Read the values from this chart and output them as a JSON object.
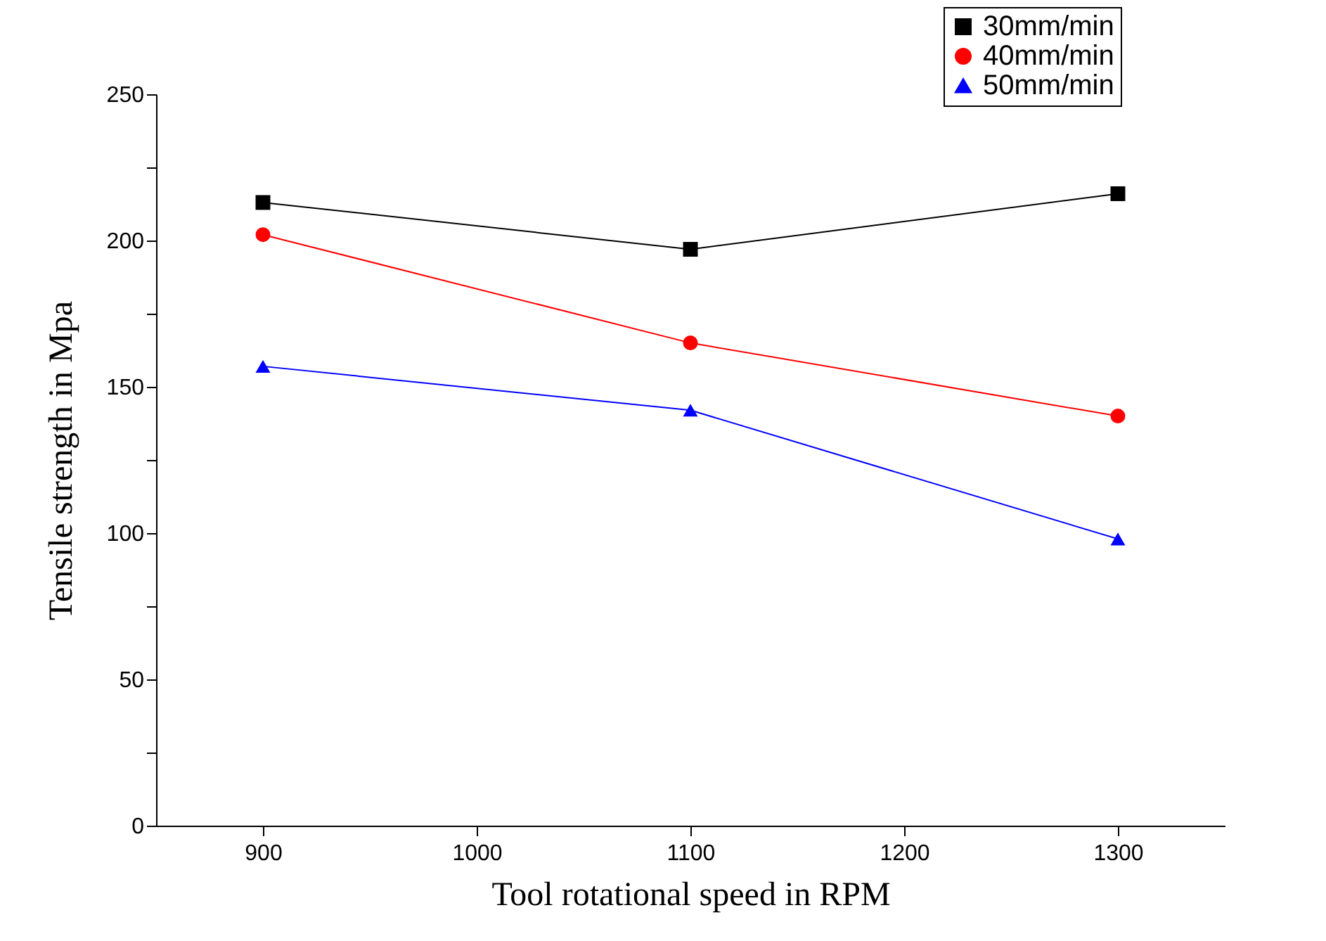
{
  "chart_data": {
    "type": "line",
    "xlabel": "Tool rotational speed in RPM",
    "ylabel": "Tensile strength in Mpa",
    "x": [
      900,
      1100,
      1300
    ],
    "series": [
      {
        "name": "30mm/min",
        "color": "#000000",
        "marker": "square",
        "values": [
          213,
          197,
          216
        ]
      },
      {
        "name": "40mm/min",
        "color": "#ff0000",
        "marker": "circle",
        "values": [
          202,
          165,
          140
        ]
      },
      {
        "name": "50mm/min",
        "color": "#0000ff",
        "marker": "triangle",
        "values": [
          157,
          142,
          98
        ]
      }
    ],
    "xlim": [
      850,
      1350
    ],
    "xticks": [
      900,
      1000,
      1100,
      1200,
      1300
    ],
    "ylim": [
      0,
      250
    ],
    "yticks": [
      0,
      {
        "value": 25,
        "label": null
      },
      50,
      {
        "value": 75,
        "label": null
      },
      100,
      {
        "value": 125,
        "label": null
      },
      150,
      {
        "value": 175,
        "label": null
      },
      200,
      {
        "value": 225,
        "label": null
      },
      250
    ],
    "grid": false,
    "legend": "top right",
    "line_style": "solid"
  }
}
